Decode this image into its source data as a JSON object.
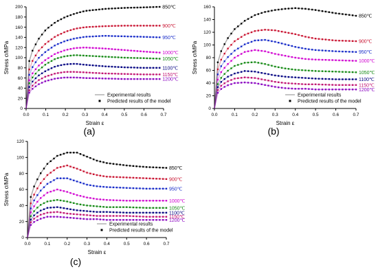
{
  "figure": {
    "temps": [
      "850℃",
      "900℃",
      "950℃",
      "1000℃",
      "1050℃",
      "1100℃",
      "1150℃",
      "1200℃"
    ],
    "colors": [
      "#000000",
      "#c8102e",
      "#1428c8",
      "#d000d0",
      "#118811",
      "#000080",
      "#c01070",
      "#8800c0"
    ],
    "legend": {
      "experimental": "Experimental results",
      "predicted": "Predicted results of the model"
    }
  },
  "chart_data": [
    {
      "panel_label": "(a)",
      "type": "line",
      "xlabel": "Strain ε",
      "ylabel": "Stress σ/MPa",
      "xlim": [
        0,
        0.7
      ],
      "ylim": [
        0,
        200
      ],
      "xticks": [
        "0.0",
        "0.1",
        "0.2",
        "0.3",
        "0.4",
        "0.5",
        "0.6",
        "0.7"
      ],
      "yticks": [
        "0",
        "20",
        "40",
        "60",
        "80",
        "100",
        "120",
        "140",
        "160",
        "180",
        "200"
      ],
      "legend_position": "bottom-right",
      "series": [
        {
          "label": "850℃",
          "x": [
            0,
            0.01,
            0.03,
            0.06,
            0.1,
            0.15,
            0.2,
            0.25,
            0.3,
            0.4,
            0.5,
            0.6,
            0.68
          ],
          "y": [
            0,
            85,
            112,
            135,
            155,
            170,
            180,
            187,
            192,
            196,
            198,
            199,
            200
          ]
        },
        {
          "label": "900℃",
          "x": [
            0,
            0.01,
            0.03,
            0.06,
            0.1,
            0.15,
            0.2,
            0.25,
            0.3,
            0.4,
            0.5,
            0.6,
            0.68
          ],
          "y": [
            0,
            70,
            92,
            112,
            128,
            142,
            151,
            157,
            160,
            162,
            163,
            163,
            163
          ]
        },
        {
          "label": "950℃",
          "x": [
            0,
            0.01,
            0.03,
            0.06,
            0.1,
            0.15,
            0.2,
            0.25,
            0.3,
            0.4,
            0.5,
            0.6,
            0.68
          ],
          "y": [
            0,
            60,
            80,
            98,
            112,
            125,
            133,
            138,
            141,
            143,
            142,
            141,
            140
          ]
        },
        {
          "label": "1000℃",
          "x": [
            0,
            0.01,
            0.03,
            0.06,
            0.1,
            0.15,
            0.2,
            0.25,
            0.3,
            0.4,
            0.5,
            0.6,
            0.68
          ],
          "y": [
            0,
            50,
            68,
            83,
            96,
            108,
            115,
            119,
            120,
            118,
            115,
            112,
            110
          ]
        },
        {
          "label": "1050℃",
          "x": [
            0,
            0.01,
            0.03,
            0.06,
            0.1,
            0.15,
            0.2,
            0.25,
            0.3,
            0.4,
            0.5,
            0.6,
            0.68
          ],
          "y": [
            0,
            45,
            60,
            74,
            87,
            98,
            103,
            105,
            104,
            102,
            100,
            99,
            98
          ]
        },
        {
          "label": "1100℃",
          "x": [
            0,
            0.01,
            0.03,
            0.06,
            0.1,
            0.15,
            0.2,
            0.25,
            0.3,
            0.4,
            0.5,
            0.6,
            0.68
          ],
          "y": [
            0,
            38,
            52,
            64,
            74,
            83,
            87,
            88,
            86,
            83,
            81,
            80,
            80
          ]
        },
        {
          "label": "1150℃",
          "x": [
            0,
            0.01,
            0.03,
            0.06,
            0.1,
            0.15,
            0.2,
            0.25,
            0.3,
            0.4,
            0.5,
            0.6,
            0.68
          ],
          "y": [
            0,
            32,
            44,
            55,
            63,
            69,
            72,
            72,
            71,
            69,
            68,
            67,
            67
          ]
        },
        {
          "label": "1200℃",
          "x": [
            0,
            0.01,
            0.03,
            0.06,
            0.1,
            0.15,
            0.2,
            0.25,
            0.3,
            0.4,
            0.5,
            0.6,
            0.68
          ],
          "y": [
            0,
            28,
            38,
            47,
            54,
            59,
            61,
            61,
            60,
            59,
            58,
            58,
            58
          ]
        }
      ]
    },
    {
      "panel_label": "(b)",
      "type": "line",
      "xlabel": "Strain ε",
      "ylabel": "Stress σ/MPa",
      "xlim": [
        0,
        0.7
      ],
      "ylim": [
        0,
        160
      ],
      "xticks": [
        "0.0",
        "0.1",
        "0.2",
        "0.3",
        "0.4",
        "0.5",
        "0.6",
        "0.7"
      ],
      "yticks": [
        "0",
        "20",
        "40",
        "60",
        "80",
        "100",
        "120",
        "140",
        "160"
      ],
      "legend_position": "bottom-right",
      "series": [
        {
          "label": "850℃",
          "x": [
            0,
            0.01,
            0.03,
            0.06,
            0.1,
            0.15,
            0.2,
            0.25,
            0.3,
            0.35,
            0.4,
            0.45,
            0.5,
            0.6,
            0.7
          ],
          "y": [
            0,
            65,
            88,
            108,
            125,
            138,
            147,
            152,
            155,
            157,
            158,
            157,
            155,
            150,
            146
          ]
        },
        {
          "label": "900℃",
          "x": [
            0,
            0.01,
            0.03,
            0.06,
            0.1,
            0.15,
            0.2,
            0.25,
            0.3,
            0.35,
            0.4,
            0.45,
            0.5,
            0.6,
            0.7
          ],
          "y": [
            0,
            55,
            75,
            92,
            106,
            116,
            122,
            124,
            123,
            120,
            117,
            113,
            110,
            107,
            106
          ]
        },
        {
          "label": "950℃",
          "x": [
            0,
            0.01,
            0.03,
            0.06,
            0.1,
            0.15,
            0.2,
            0.25,
            0.3,
            0.35,
            0.4,
            0.45,
            0.5,
            0.6,
            0.7
          ],
          "y": [
            0,
            48,
            65,
            79,
            91,
            101,
            107,
            108,
            105,
            101,
            97,
            94,
            92,
            90,
            89
          ]
        },
        {
          "label": "1000℃",
          "x": [
            0,
            0.01,
            0.03,
            0.06,
            0.1,
            0.15,
            0.2,
            0.25,
            0.3,
            0.35,
            0.4,
            0.45,
            0.5,
            0.6,
            0.7
          ],
          "y": [
            0,
            40,
            56,
            68,
            80,
            89,
            92,
            90,
            86,
            83,
            80,
            78,
            77,
            76,
            75
          ]
        },
        {
          "label": "1050℃",
          "x": [
            0,
            0.01,
            0.03,
            0.06,
            0.1,
            0.15,
            0.2,
            0.25,
            0.3,
            0.35,
            0.4,
            0.45,
            0.5,
            0.6,
            0.7
          ],
          "y": [
            0,
            34,
            47,
            58,
            67,
            72,
            73,
            70,
            66,
            63,
            61,
            60,
            59,
            58,
            57
          ]
        },
        {
          "label": "1100℃",
          "x": [
            0,
            0.01,
            0.03,
            0.06,
            0.1,
            0.15,
            0.2,
            0.25,
            0.3,
            0.35,
            0.4,
            0.45,
            0.5,
            0.6,
            0.7
          ],
          "y": [
            0,
            30,
            41,
            49,
            55,
            59,
            58,
            55,
            52,
            50,
            49,
            48,
            47,
            46,
            46
          ]
        },
        {
          "label": "1150℃",
          "x": [
            0,
            0.01,
            0.03,
            0.06,
            0.1,
            0.15,
            0.2,
            0.25,
            0.3,
            0.35,
            0.4,
            0.45,
            0.5,
            0.6,
            0.7
          ],
          "y": [
            0,
            26,
            35,
            42,
            47,
            49,
            48,
            45,
            42,
            40,
            39,
            38,
            38,
            37,
            37
          ]
        },
        {
          "label": "1200℃",
          "x": [
            0,
            0.01,
            0.03,
            0.06,
            0.1,
            0.15,
            0.2,
            0.25,
            0.3,
            0.35,
            0.4,
            0.45,
            0.5,
            0.6,
            0.7
          ],
          "y": [
            0,
            22,
            30,
            36,
            40,
            41,
            40,
            37,
            34,
            32,
            31,
            31,
            30,
            30,
            30
          ]
        }
      ]
    },
    {
      "panel_label": "(c)",
      "type": "line",
      "xlabel": "Strain ε",
      "ylabel": "Stress σ/MPa",
      "xlim": [
        0,
        0.7
      ],
      "ylim": [
        0,
        120
      ],
      "xticks": [
        "0.0",
        "0.1",
        "0.2",
        "0.3",
        "0.4",
        "0.5",
        "0.6",
        "0.7"
      ],
      "yticks": [
        "0",
        "20",
        "40",
        "60",
        "80",
        "100",
        "120"
      ],
      "legend_position": "bottom-right",
      "series": [
        {
          "label": "850℃",
          "x": [
            0,
            0.01,
            0.03,
            0.06,
            0.1,
            0.15,
            0.2,
            0.25,
            0.3,
            0.35,
            0.4,
            0.5,
            0.6,
            0.7
          ],
          "y": [
            0,
            45,
            62,
            78,
            92,
            102,
            106,
            106,
            101,
            96,
            93,
            90,
            88,
            87
          ]
        },
        {
          "label": "900℃",
          "x": [
            0,
            0.01,
            0.03,
            0.06,
            0.1,
            0.15,
            0.2,
            0.25,
            0.3,
            0.35,
            0.4,
            0.5,
            0.6,
            0.7
          ],
          "y": [
            0,
            38,
            52,
            66,
            78,
            87,
            90,
            86,
            81,
            78,
            76,
            75,
            74,
            73
          ]
        },
        {
          "label": "950℃",
          "x": [
            0,
            0.01,
            0.03,
            0.06,
            0.1,
            0.15,
            0.2,
            0.25,
            0.3,
            0.35,
            0.4,
            0.5,
            0.6,
            0.7
          ],
          "y": [
            0,
            32,
            45,
            57,
            67,
            74,
            74,
            70,
            66,
            64,
            63,
            62,
            61,
            61
          ]
        },
        {
          "label": "1000℃",
          "x": [
            0,
            0.01,
            0.03,
            0.06,
            0.1,
            0.15,
            0.2,
            0.25,
            0.3,
            0.35,
            0.4,
            0.5,
            0.6,
            0.7
          ],
          "y": [
            0,
            28,
            38,
            48,
            56,
            60,
            57,
            53,
            50,
            48,
            47,
            46,
            46,
            46
          ]
        },
        {
          "label": "1050℃",
          "x": [
            0,
            0.01,
            0.03,
            0.06,
            0.1,
            0.15,
            0.2,
            0.25,
            0.3,
            0.35,
            0.4,
            0.5,
            0.6,
            0.7
          ],
          "y": [
            0,
            24,
            32,
            40,
            45,
            47,
            45,
            42,
            40,
            39,
            38,
            38,
            37,
            37
          ]
        },
        {
          "label": "1100℃",
          "x": [
            0,
            0.01,
            0.03,
            0.06,
            0.1,
            0.15,
            0.2,
            0.25,
            0.3,
            0.35,
            0.4,
            0.5,
            0.6,
            0.7
          ],
          "y": [
            0,
            20,
            27,
            33,
            37,
            38,
            36,
            34,
            33,
            32,
            32,
            31,
            31,
            31
          ]
        },
        {
          "label": "1150℃",
          "x": [
            0,
            0.01,
            0.03,
            0.06,
            0.1,
            0.15,
            0.2,
            0.25,
            0.3,
            0.35,
            0.4,
            0.5,
            0.6,
            0.7
          ],
          "y": [
            0,
            17,
            23,
            28,
            31,
            32,
            30,
            29,
            28,
            27,
            27,
            27,
            26,
            26
          ]
        },
        {
          "label": "1200℃",
          "x": [
            0,
            0.01,
            0.03,
            0.06,
            0.1,
            0.15,
            0.2,
            0.25,
            0.3,
            0.35,
            0.4,
            0.5,
            0.6,
            0.7
          ],
          "y": [
            0,
            14,
            19,
            23,
            26,
            26,
            25,
            24,
            23,
            23,
            22,
            22,
            22,
            22
          ]
        }
      ]
    }
  ]
}
